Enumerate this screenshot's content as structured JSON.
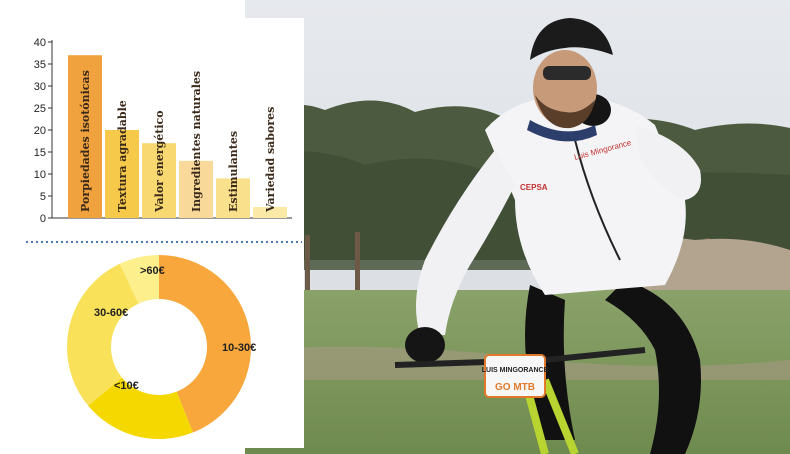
{
  "chart_data": [
    {
      "type": "bar",
      "categories": [
        "Porpiedades isotónicas",
        "Textura agradable",
        "Valor energético",
        "Ingredientes naturales",
        "Estimulantes",
        "Variedad sabores"
      ],
      "values": [
        37,
        20,
        17,
        13,
        9,
        2.5
      ],
      "ylim": [
        0,
        40
      ],
      "yticks": [
        0,
        5,
        10,
        15,
        20,
        25,
        30,
        35,
        40
      ],
      "colors": [
        "#f0a23e",
        "#f6c94a",
        "#f8d870",
        "#f8d99a",
        "#f9e08c",
        "#fbe9a8"
      ],
      "grid": false
    },
    {
      "type": "pie",
      "style": "donut",
      "labels": [
        "10-30€",
        "<10€",
        "30-60€",
        ">60€"
      ],
      "values": [
        44,
        20,
        29,
        7
      ],
      "colors": [
        "#f7a73b",
        "#f5d800",
        "#f9e25a",
        "#fcef8c"
      ]
    }
  ],
  "photo": {
    "bib_name": "LUIS MINGORANCE",
    "bib_brand": "GO MTB",
    "jacket_text": "Luis Mingorance",
    "sponsor_text": "CEPSA"
  }
}
